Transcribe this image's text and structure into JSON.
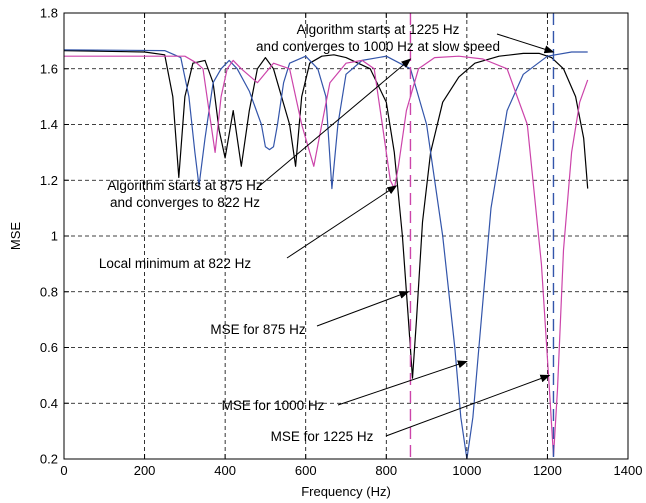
{
  "chart_data": {
    "type": "line",
    "xlabel": "Frequency (Hz)",
    "ylabel": "MSE",
    "xlim": [
      0,
      1400
    ],
    "ylim": [
      0.2,
      1.8
    ],
    "xticks": [
      0,
      200,
      400,
      600,
      800,
      1000,
      1200,
      1400
    ],
    "yticks": [
      0.2,
      0.4,
      0.6,
      0.8,
      1,
      1.2,
      1.4,
      1.6,
      1.8
    ],
    "xtick_labels": [
      "0",
      "200",
      "400",
      "600",
      "800",
      "1000",
      "1200",
      "1400"
    ],
    "ytick_labels": [
      "0.2",
      "0.4",
      "0.6",
      "0.8",
      "1",
      "1.2",
      "1.4",
      "1.6",
      "1.8"
    ],
    "grid": true,
    "series": [
      {
        "color": "#000000",
        "x": [
          0,
          200,
          250,
          270,
          285,
          300,
          320,
          350,
          370,
          385,
          400,
          420,
          440,
          460,
          480,
          500,
          520,
          540,
          560,
          575,
          590,
          610,
          640,
          670,
          700,
          760,
          800,
          820,
          840,
          855,
          865,
          875,
          890,
          910,
          940,
          980,
          1020,
          1080,
          1140,
          1180,
          1210,
          1240,
          1270,
          1290,
          1300
        ],
        "y": [
          1.665,
          1.66,
          1.65,
          1.5,
          1.21,
          1.5,
          1.62,
          1.63,
          1.55,
          1.38,
          1.28,
          1.45,
          1.25,
          1.45,
          1.6,
          1.64,
          1.6,
          1.5,
          1.4,
          1.25,
          1.5,
          1.62,
          1.645,
          1.65,
          1.64,
          1.6,
          1.48,
          1.3,
          1.0,
          0.7,
          0.49,
          0.7,
          1.05,
          1.3,
          1.48,
          1.57,
          1.62,
          1.645,
          1.655,
          1.655,
          1.64,
          1.6,
          1.5,
          1.35,
          1.17
        ]
      },
      {
        "color": "#3355aa",
        "x": [
          0,
          250,
          290,
          310,
          325,
          335,
          350,
          370,
          390,
          410,
          430,
          460,
          490,
          500,
          510,
          520,
          530,
          545,
          560,
          600,
          630,
          650,
          665,
          680,
          700,
          740,
          800,
          860,
          900,
          940,
          970,
          985,
          1000,
          1015,
          1030,
          1060,
          1100,
          1140,
          1200,
          1260,
          1300
        ],
        "y": [
          1.668,
          1.665,
          1.64,
          1.5,
          1.3,
          1.18,
          1.35,
          1.55,
          1.6,
          1.63,
          1.6,
          1.52,
          1.4,
          1.32,
          1.31,
          1.32,
          1.4,
          1.55,
          1.62,
          1.645,
          1.6,
          1.5,
          1.17,
          1.4,
          1.58,
          1.63,
          1.645,
          1.6,
          1.4,
          1.0,
          0.6,
          0.35,
          0.2,
          0.35,
          0.6,
          1.1,
          1.45,
          1.58,
          1.645,
          1.66,
          1.66
        ]
      },
      {
        "color": "#cc44aa",
        "x": [
          0,
          300,
          330,
          345,
          360,
          375,
          390,
          405,
          420,
          440,
          480,
          520,
          560,
          590,
          620,
          640,
          660,
          700,
          740,
          770,
          790,
          810,
          820,
          830,
          850,
          880,
          920,
          980,
          1040,
          1100,
          1150,
          1185,
          1205,
          1215,
          1225,
          1240,
          1260,
          1280,
          1300
        ],
        "y": [
          1.645,
          1.645,
          1.62,
          1.6,
          1.45,
          1.3,
          1.5,
          1.6,
          1.63,
          1.6,
          1.55,
          1.62,
          1.6,
          1.4,
          1.25,
          1.4,
          1.55,
          1.62,
          1.63,
          1.6,
          1.4,
          1.2,
          1.17,
          1.25,
          1.45,
          1.6,
          1.64,
          1.645,
          1.635,
          1.6,
          1.4,
          0.9,
          0.45,
          0.21,
          0.45,
          0.95,
          1.3,
          1.48,
          1.56
        ]
      }
    ],
    "reference_lines": [
      {
        "x": 860,
        "color": "#cc44aa",
        "style": "dashed"
      },
      {
        "x": 1215,
        "color": "#3355aa",
        "style": "dashed"
      }
    ],
    "annotations": [
      {
        "lines": [
          "Algorithm starts at 1225 Hz",
          "and converges to 1000 Hz at slow speed"
        ],
        "arrow_to": [
          1215,
          1.66
        ]
      },
      {
        "lines": [
          "Algorithm starts at 875 Hz",
          "and converges to 822 Hz"
        ],
        "arrow_to": [
          860,
          1.635
        ]
      },
      {
        "lines": [
          "Local minimum at 822 Hz"
        ],
        "arrow_to": [
          825,
          1.18
        ]
      },
      {
        "lines": [
          "MSE for 875 Hz"
        ],
        "arrow_to": [
          855,
          0.8
        ]
      },
      {
        "lines": [
          "MSE for 1000 Hz"
        ],
        "arrow_to": [
          1000,
          0.55
        ]
      },
      {
        "lines": [
          "MSE for 1225 Hz"
        ],
        "arrow_to": [
          1205,
          0.5
        ]
      }
    ]
  }
}
